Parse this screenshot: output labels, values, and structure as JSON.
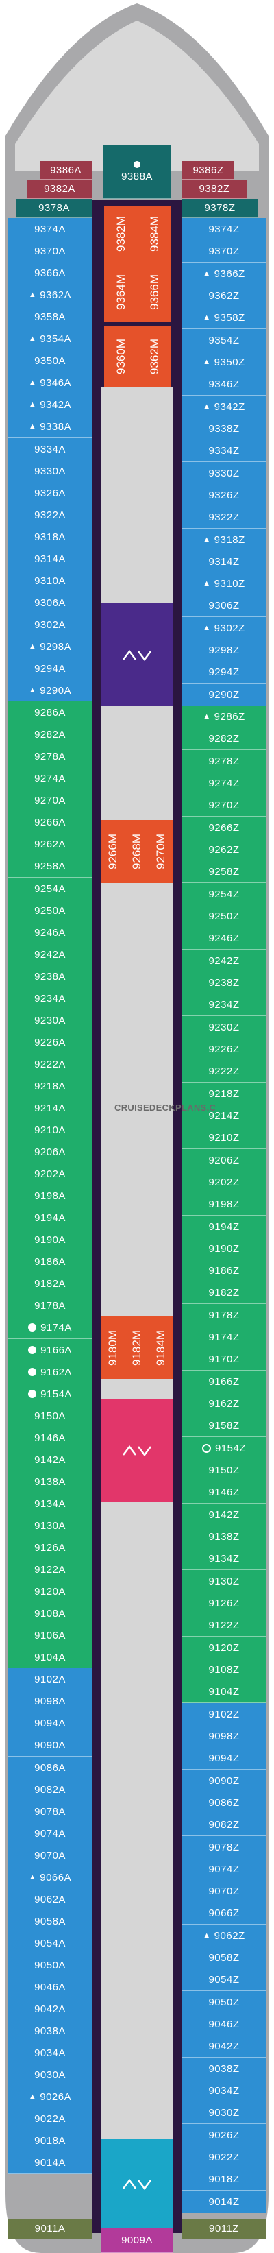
{
  "deck_plan": {
    "colors": {
      "hull": "#a9a9ab",
      "corridor": "#2b1640",
      "balcony": "#1fae6b",
      "oceanview": "#2d8fd3",
      "interior": "#e5522a",
      "suite": "#9b3a4a",
      "forward_teal": "#156a6a",
      "elevator_purple": "#4a2a8a",
      "elevator_pink": "#e2366a",
      "elevator_cyan": "#1aa6c8",
      "aft_magenta": "#b23a9a",
      "aft_olive": "#6a7a46"
    },
    "watermark": "CRUISEDECKPLANS.C",
    "forward": {
      "top": "9388A",
      "left": [
        "9386A",
        "9382A",
        "9378A"
      ],
      "right": [
        "9386Z",
        "9382Z",
        "9378Z"
      ]
    },
    "left_column": [
      "9374A",
      "9370A",
      "9366A",
      "9362A",
      "9358A",
      "9354A",
      "9350A",
      "9346A",
      "9342A",
      "9338A",
      "9334A",
      "9330A",
      "9326A",
      "9322A",
      "9318A",
      "9314A",
      "9310A",
      "9306A",
      "9302A",
      "9298A",
      "9294A",
      "9290A",
      "9286A",
      "9282A",
      "9278A",
      "9274A",
      "9270A",
      "9266A",
      "9262A",
      "9258A",
      "9254A",
      "9250A",
      "9246A",
      "9242A",
      "9238A",
      "9234A",
      "9230A",
      "9226A",
      "9222A",
      "9218A",
      "9214A",
      "9210A",
      "9206A",
      "9202A",
      "9198A",
      "9194A",
      "9190A",
      "9186A",
      "9182A",
      "9178A",
      "9174A",
      "9166A",
      "9162A",
      "9154A",
      "9150A",
      "9146A",
      "9142A",
      "9138A",
      "9134A",
      "9130A",
      "9126A",
      "9122A",
      "9120A",
      "9108A",
      "9106A",
      "9104A",
      "9102A",
      "9098A",
      "9094A",
      "9090A",
      "9086A",
      "9082A",
      "9078A",
      "9074A",
      "9070A",
      "9066A",
      "9062A",
      "9058A",
      "9054A",
      "9050A",
      "9046A",
      "9042A",
      "9038A",
      "9034A",
      "9030A",
      "9026A",
      "9022A",
      "9018A",
      "9014A"
    ],
    "right_column": [
      "9374Z",
      "9370Z",
      "9366Z",
      "9362Z",
      "9358Z",
      "9354Z",
      "9350Z",
      "9346Z",
      "9342Z",
      "9338Z",
      "9334Z",
      "9330Z",
      "9326Z",
      "9322Z",
      "9318Z",
      "9314Z",
      "9310Z",
      "9306Z",
      "9302Z",
      "9298Z",
      "9294Z",
      "9290Z",
      "9286Z",
      "9282Z",
      "9278Z",
      "9274Z",
      "9270Z",
      "9266Z",
      "9262Z",
      "9258Z",
      "9254Z",
      "9250Z",
      "9246Z",
      "9242Z",
      "9238Z",
      "9234Z",
      "9230Z",
      "9226Z",
      "9222Z",
      "9218Z",
      "9214Z",
      "9210Z",
      "9206Z",
      "9202Z",
      "9198Z",
      "9194Z",
      "9190Z",
      "9186Z",
      "9182Z",
      "9178Z",
      "9174Z",
      "9170Z",
      "9166Z",
      "9162Z",
      "9158Z",
      "9154Z",
      "9150Z",
      "9146Z",
      "9142Z",
      "9138Z",
      "9134Z",
      "9130Z",
      "9126Z",
      "9122Z",
      "9120Z",
      "9108Z",
      "9104Z",
      "9102Z",
      "9098Z",
      "9094Z",
      "9090Z",
      "9086Z",
      "9082Z",
      "9078Z",
      "9074Z",
      "9070Z",
      "9066Z",
      "9062Z",
      "9058Z",
      "9054Z",
      "9050Z",
      "9046Z",
      "9042Z",
      "9038Z",
      "9034Z",
      "9030Z",
      "9026Z",
      "9022Z",
      "9018Z",
      "9014Z"
    ],
    "center_interior_groups": [
      [
        "9382M",
        "9384M"
      ],
      [
        "9364M",
        "9366M"
      ],
      [
        "9360M",
        "9362M"
      ],
      [
        "9266M",
        "9268M",
        "9270M"
      ],
      [
        "9180M",
        "9182M",
        "9184M"
      ]
    ],
    "aft": {
      "left": "9011A",
      "center": "9009A",
      "right": "9011Z"
    },
    "elevator_icon": "chevron-pair-icon"
  }
}
